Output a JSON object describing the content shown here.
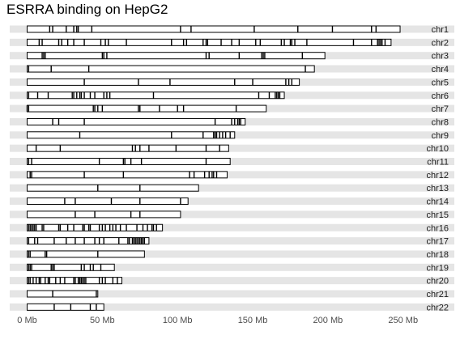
{
  "chart_data": {
    "type": "ideogram",
    "title": "ESRRA binding on HepG2",
    "xlabel": "",
    "ylabel": "",
    "x_unit": "Mb",
    "xlim": [
      0,
      260
    ],
    "x_ticks": [
      0,
      50,
      100,
      150,
      200,
      250
    ],
    "x_tick_labels": [
      "0 Mb",
      "50 Mb",
      "100 Mb",
      "150 Mb",
      "200 Mb",
      "250 Mb"
    ],
    "grid": false,
    "colors": {
      "track": "#e5e5e5",
      "chrom_fill": "#ffffff",
      "outline": "#000000",
      "site": "#000000"
    },
    "chromosomes": [
      {
        "name": "chr1",
        "length": 248,
        "sites": [
          15,
          17,
          26,
          31,
          33,
          34,
          43,
          102,
          109,
          151,
          180,
          203,
          229,
          232
        ]
      },
      {
        "name": "chr2",
        "length": 242,
        "sites": [
          8,
          10,
          21,
          23,
          27,
          31,
          38,
          49,
          52,
          54,
          66,
          96,
          104,
          106,
          117,
          119,
          120,
          129,
          136,
          141,
          152,
          155,
          169,
          171,
          175,
          176,
          178,
          186,
          217,
          229,
          233,
          234,
          235,
          236,
          238
        ]
      },
      {
        "name": "chr3",
        "length": 198,
        "sites": [
          10,
          11,
          12,
          50,
          51,
          53,
          119,
          121,
          141,
          156,
          157,
          158,
          183
        ]
      },
      {
        "name": "chr4",
        "length": 191,
        "sites": [
          1,
          16,
          41,
          185
        ]
      },
      {
        "name": "chr5",
        "length": 181,
        "sites": [
          38,
          74,
          95,
          138,
          150,
          172,
          174,
          176
        ]
      },
      {
        "name": "chr6",
        "length": 171,
        "sites": [
          1,
          7,
          14,
          30,
          31,
          33,
          35,
          36,
          38,
          42,
          45,
          51,
          53,
          55,
          84,
          154,
          161,
          165,
          166,
          167,
          168
        ]
      },
      {
        "name": "chr7",
        "length": 159,
        "sites": [
          0,
          1,
          44,
          45,
          47,
          50,
          74,
          75,
          88,
          100,
          104,
          139
        ]
      },
      {
        "name": "chr8",
        "length": 145,
        "sites": [
          17,
          21,
          38,
          125,
          136,
          138,
          140,
          141,
          142
        ]
      },
      {
        "name": "chr9",
        "length": 138,
        "sites": [
          35,
          96,
          117,
          124,
          125,
          126,
          128,
          130,
          132,
          135
        ]
      },
      {
        "name": "chr10",
        "length": 134,
        "sites": [
          6,
          22,
          70,
          72,
          75,
          81,
          99,
          119,
          128
        ]
      },
      {
        "name": "chr11",
        "length": 135,
        "sites": [
          1,
          3,
          48,
          64,
          65,
          69,
          76,
          119
        ]
      },
      {
        "name": "chr12",
        "length": 133,
        "sites": [
          2,
          3,
          38,
          64,
          108,
          111,
          118,
          121,
          123,
          124,
          126
        ]
      },
      {
        "name": "chr13",
        "length": 114,
        "sites": [
          47,
          75
        ]
      },
      {
        "name": "chr14",
        "length": 107,
        "sites": [
          25,
          32,
          56,
          75,
          102
        ]
      },
      {
        "name": "chr15",
        "length": 102,
        "sites": [
          32,
          45,
          69,
          75
        ]
      },
      {
        "name": "chr16",
        "length": 90,
        "sites": [
          1,
          2,
          3,
          4,
          5,
          6,
          10,
          11,
          21,
          22,
          27,
          31,
          37,
          38,
          41,
          42,
          48,
          50,
          52,
          55,
          57,
          59,
          62,
          66,
          73,
          77,
          80,
          83,
          84,
          86
        ]
      },
      {
        "name": "chr17",
        "length": 81,
        "sites": [
          1,
          5,
          7,
          18,
          26,
          32,
          38,
          45,
          48,
          51,
          61,
          67,
          68,
          70,
          71,
          72,
          73,
          74,
          75,
          76,
          77,
          78
        ]
      },
      {
        "name": "chr18",
        "length": 78,
        "sites": [
          1,
          2,
          12,
          13,
          47
        ]
      },
      {
        "name": "chr19",
        "length": 58,
        "sites": [
          1,
          2,
          3,
          16,
          17,
          18,
          36,
          38,
          42,
          44,
          49
        ]
      },
      {
        "name": "chr20",
        "length": 63,
        "sites": [
          1,
          2,
          4,
          6,
          8,
          9,
          12,
          14,
          15,
          19,
          22,
          25,
          31,
          32,
          34,
          35,
          36,
          37,
          38,
          39,
          48,
          50,
          52,
          57,
          60
        ]
      },
      {
        "name": "chr21",
        "length": 47,
        "sites": [
          17,
          46
        ]
      },
      {
        "name": "chr22",
        "length": 51,
        "sites": [
          18,
          29,
          42,
          46
        ]
      }
    ]
  }
}
